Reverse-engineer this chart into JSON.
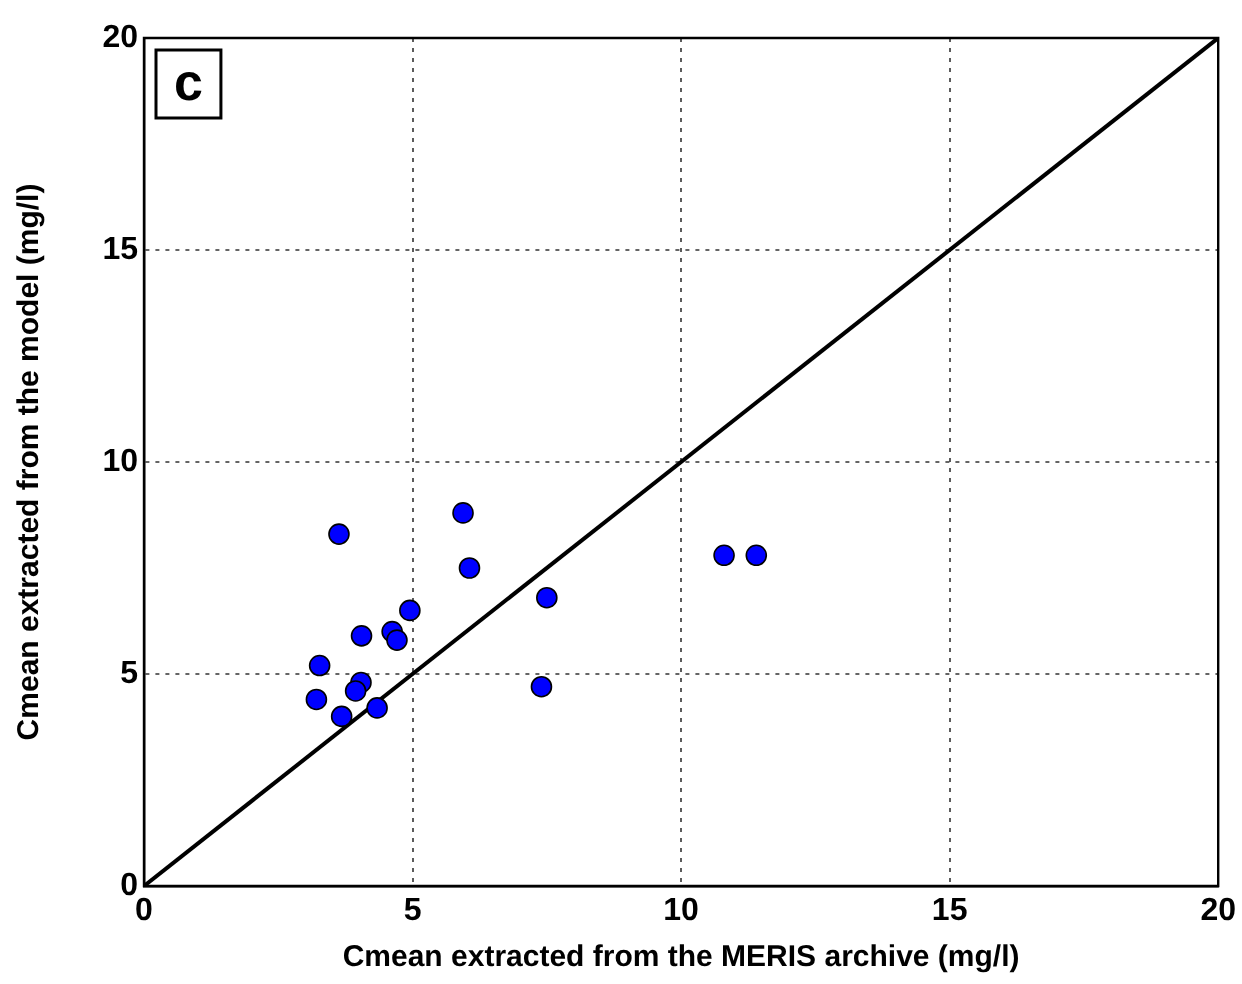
{
  "chart_data": {
    "type": "scatter",
    "xlabel": "Cmean extracted from the MERIS archive (mg/l)",
    "ylabel": "Cmean extracted from the model (mg/l)",
    "annotations": [
      "c"
    ],
    "series": [
      {
        "color": "#0000ff",
        "marker": "circle",
        "x": [
          3.63,
          5.94,
          6.06,
          4.95,
          7.5,
          4.05,
          4.62,
          4.71,
          3.27,
          4.04,
          3.94,
          3.21,
          3.68,
          4.34,
          7.4,
          10.8,
          11.4
        ],
        "values": [
          8.3,
          8.8,
          7.5,
          6.5,
          6.8,
          5.9,
          6.0,
          5.8,
          5.2,
          4.8,
          4.6,
          4.4,
          4.0,
          4.2,
          4.7,
          7.8,
          7.8
        ]
      },
      {
        "type": "line",
        "color": "#000000",
        "marker": "none",
        "line_style": "solid",
        "x": [
          0,
          20
        ],
        "values": [
          0,
          20
        ]
      }
    ],
    "xlim": [
      0,
      20
    ],
    "xticks": [
      0,
      5,
      10,
      15,
      20
    ],
    "ylim": [
      0,
      20
    ],
    "yticks": [
      0,
      5,
      10,
      15,
      20
    ],
    "grid": true,
    "legend": false
  }
}
